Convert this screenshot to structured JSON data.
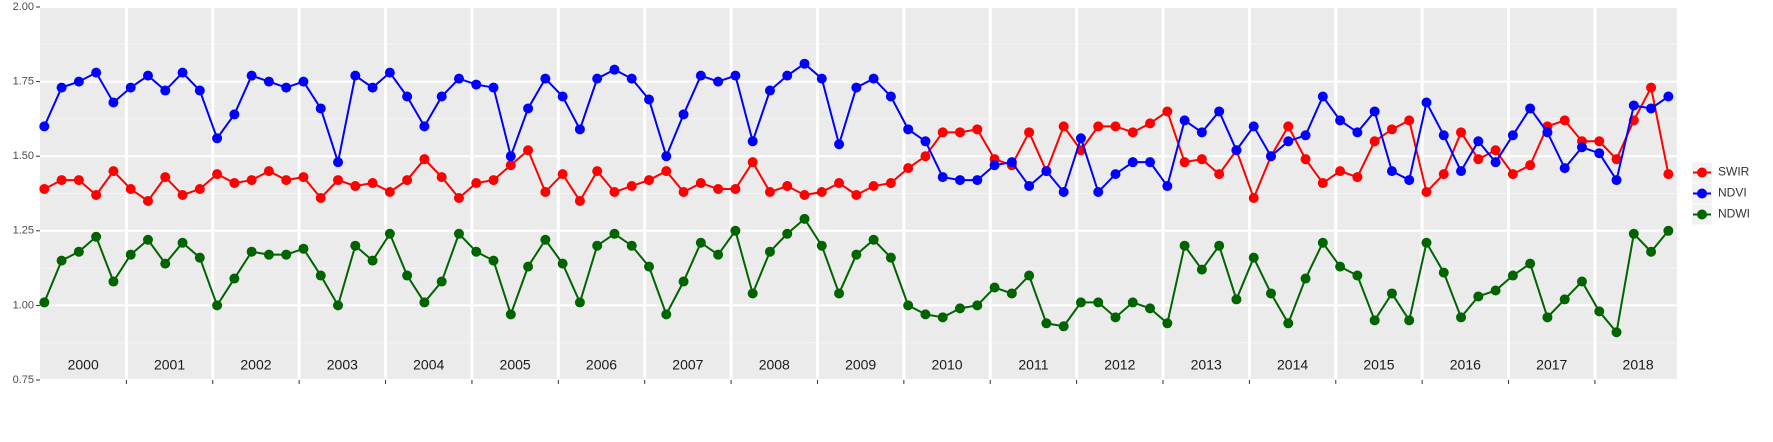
{
  "chart_data": {
    "type": "line",
    "year_labels": [
      "2000",
      "2001",
      "2002",
      "2003",
      "2004",
      "2005",
      "2006",
      "2007",
      "2008",
      "2009",
      "2010",
      "2011",
      "2012",
      "2013",
      "2014",
      "2015",
      "2016",
      "2017",
      "2018"
    ],
    "x": [
      2000.05,
      2000.25,
      2000.45,
      2000.65,
      2000.85,
      2001.05,
      2001.25,
      2001.45,
      2001.65,
      2001.85,
      2002.05,
      2002.25,
      2002.45,
      2002.65,
      2002.85,
      2003.05,
      2003.25,
      2003.45,
      2003.65,
      2003.85,
      2004.05,
      2004.25,
      2004.45,
      2004.65,
      2004.85,
      2005.05,
      2005.25,
      2005.45,
      2005.65,
      2005.85,
      2006.05,
      2006.25,
      2006.45,
      2006.65,
      2006.85,
      2007.05,
      2007.25,
      2007.45,
      2007.65,
      2007.85,
      2008.05,
      2008.25,
      2008.45,
      2008.65,
      2008.85,
      2009.05,
      2009.25,
      2009.45,
      2009.65,
      2009.85,
      2010.05,
      2010.25,
      2010.45,
      2010.65,
      2010.85,
      2011.05,
      2011.25,
      2011.45,
      2011.65,
      2011.85,
      2012.05,
      2012.25,
      2012.45,
      2012.65,
      2012.85,
      2013.05,
      2013.25,
      2013.45,
      2013.65,
      2013.85,
      2014.05,
      2014.25,
      2014.45,
      2014.65,
      2014.85,
      2015.05,
      2015.25,
      2015.45,
      2015.65,
      2015.85,
      2016.05,
      2016.25,
      2016.45,
      2016.65,
      2016.85,
      2017.05,
      2017.25,
      2017.45,
      2017.65,
      2017.85,
      2018.05,
      2018.25,
      2018.45,
      2018.65,
      2018.85
    ],
    "series": [
      {
        "name": "SWIR",
        "color": "#ff0000",
        "values": [
          1.39,
          1.42,
          1.42,
          1.37,
          1.45,
          1.39,
          1.35,
          1.43,
          1.37,
          1.39,
          1.44,
          1.41,
          1.42,
          1.45,
          1.42,
          1.43,
          1.36,
          1.42,
          1.4,
          1.41,
          1.38,
          1.42,
          1.49,
          1.43,
          1.36,
          1.41,
          1.42,
          1.47,
          1.52,
          1.38,
          1.44,
          1.35,
          1.45,
          1.38,
          1.4,
          1.42,
          1.45,
          1.38,
          1.41,
          1.39,
          1.39,
          1.48,
          1.38,
          1.4,
          1.37,
          1.38,
          1.41,
          1.37,
          1.4,
          1.41,
          1.46,
          1.5,
          1.58,
          1.58,
          1.59,
          1.49,
          1.47,
          1.58,
          1.45,
          1.6,
          1.52,
          1.6,
          1.6,
          1.58,
          1.61,
          1.65,
          1.48,
          1.49,
          1.44,
          1.52,
          1.36,
          1.5,
          1.6,
          1.49,
          1.41,
          1.45,
          1.43,
          1.55,
          1.59,
          1.62,
          1.38,
          1.44,
          1.58,
          1.49,
          1.52,
          1.44,
          1.47,
          1.6,
          1.62,
          1.55,
          1.55,
          1.49,
          1.62,
          1.73,
          1.44
        ]
      },
      {
        "name": "NDVI",
        "color": "#0000ff",
        "values": [
          1.6,
          1.73,
          1.75,
          1.78,
          1.68,
          1.73,
          1.77,
          1.72,
          1.78,
          1.72,
          1.56,
          1.64,
          1.77,
          1.75,
          1.73,
          1.75,
          1.66,
          1.48,
          1.77,
          1.73,
          1.78,
          1.7,
          1.6,
          1.7,
          1.76,
          1.74,
          1.73,
          1.5,
          1.66,
          1.76,
          1.7,
          1.59,
          1.76,
          1.79,
          1.76,
          1.69,
          1.5,
          1.64,
          1.77,
          1.75,
          1.77,
          1.55,
          1.72,
          1.77,
          1.81,
          1.76,
          1.54,
          1.73,
          1.76,
          1.7,
          1.59,
          1.55,
          1.43,
          1.42,
          1.42,
          1.47,
          1.48,
          1.4,
          1.45,
          1.38,
          1.56,
          1.38,
          1.44,
          1.48,
          1.48,
          1.4,
          1.62,
          1.58,
          1.65,
          1.52,
          1.6,
          1.5,
          1.55,
          1.57,
          1.7,
          1.62,
          1.58,
          1.65,
          1.45,
          1.42,
          1.68,
          1.57,
          1.45,
          1.55,
          1.48,
          1.57,
          1.66,
          1.58,
          1.46,
          1.53,
          1.51,
          1.42,
          1.67,
          1.66,
          1.7
        ]
      },
      {
        "name": "NDWI",
        "color": "#006400",
        "values": [
          1.01,
          1.15,
          1.18,
          1.23,
          1.08,
          1.17,
          1.22,
          1.14,
          1.21,
          1.16,
          1.0,
          1.09,
          1.18,
          1.17,
          1.17,
          1.19,
          1.1,
          1.0,
          1.2,
          1.15,
          1.24,
          1.1,
          1.01,
          1.08,
          1.24,
          1.18,
          1.15,
          0.97,
          1.13,
          1.22,
          1.14,
          1.01,
          1.2,
          1.24,
          1.2,
          1.13,
          0.97,
          1.08,
          1.21,
          1.17,
          1.25,
          1.04,
          1.18,
          1.24,
          1.29,
          1.2,
          1.04,
          1.17,
          1.22,
          1.16,
          1.0,
          0.97,
          0.96,
          0.99,
          1.0,
          1.06,
          1.04,
          1.1,
          0.94,
          0.93,
          1.01,
          1.01,
          0.96,
          1.01,
          0.99,
          0.94,
          1.2,
          1.12,
          1.2,
          1.02,
          1.16,
          1.04,
          0.94,
          1.09,
          1.21,
          1.13,
          1.1,
          0.95,
          1.04,
          0.95,
          1.21,
          1.11,
          0.96,
          1.03,
          1.05,
          1.1,
          1.14,
          0.96,
          1.02,
          1.08,
          0.98,
          0.91,
          1.24,
          1.18,
          1.25
        ]
      }
    ],
    "xlim": [
      2000,
      2018.95
    ],
    "xticks": [
      2001,
      2002,
      2003,
      2004,
      2005,
      2006,
      2007,
      2008,
      2009,
      2010,
      2011,
      2012,
      2013,
      2014,
      2015,
      2016,
      2017,
      2018
    ],
    "ylim": [
      0.75,
      2.0
    ],
    "yticks": [
      {
        "value": 0.75,
        "label": "0.75"
      },
      {
        "value": 1.0,
        "label": "1.00"
      },
      {
        "value": 1.25,
        "label": "1.25"
      },
      {
        "value": 1.5,
        "label": "1.50"
      },
      {
        "value": 1.75,
        "label": "1.75"
      },
      {
        "value": 2.0,
        "label": "2.00"
      }
    ],
    "grid": true,
    "legend": "right"
  }
}
